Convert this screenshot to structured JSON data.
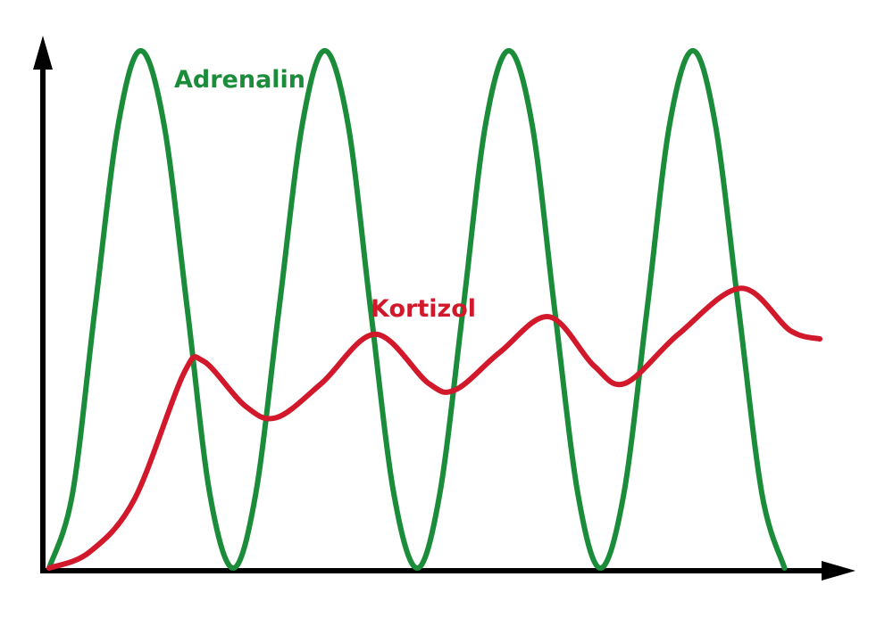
{
  "chart_data": {
    "type": "line",
    "xlim": [
      0,
      100
    ],
    "ylim": [
      0,
      100
    ],
    "series": [
      {
        "name": "Adrenalin",
        "color": "#1b8c3a",
        "x": [
          0,
          2.9,
          5.7,
          8.6,
          11.4,
          14.3,
          17.2,
          20.0,
          22.9,
          25.7,
          28.6,
          31.5,
          34.3,
          37.2,
          40.0,
          42.9,
          45.8,
          48.6,
          51.5,
          54.3,
          57.2,
          60.1,
          62.9,
          65.8,
          68.6,
          71.5,
          74.4,
          77.2,
          80.1,
          82.9,
          85.8,
          88.7,
          91.5
        ],
        "values": [
          0,
          14,
          49,
          84,
          98,
          84,
          49,
          14,
          0,
          14,
          49,
          84,
          98,
          84,
          49,
          14,
          0,
          14,
          49,
          84,
          98,
          84,
          49,
          14,
          0,
          14,
          49,
          84,
          98,
          84,
          49,
          14,
          0
        ]
      },
      {
        "name": "Kortizol",
        "color": "#d2192b",
        "x": [
          0,
          5,
          10.6,
          16.7,
          19.2,
          24.4,
          28.3,
          33.9,
          40.6,
          47.2,
          50.6,
          56.1,
          62.2,
          67.8,
          71.7,
          78.3,
          86.1,
          92.2,
          95.9
        ],
        "values": [
          0,
          3,
          13,
          36.7,
          39.2,
          30.7,
          28.5,
          35,
          44.3,
          35,
          33.8,
          40.9,
          47.6,
          38.3,
          35,
          44.3,
          53,
          45,
          43.4
        ]
      }
    ]
  }
}
